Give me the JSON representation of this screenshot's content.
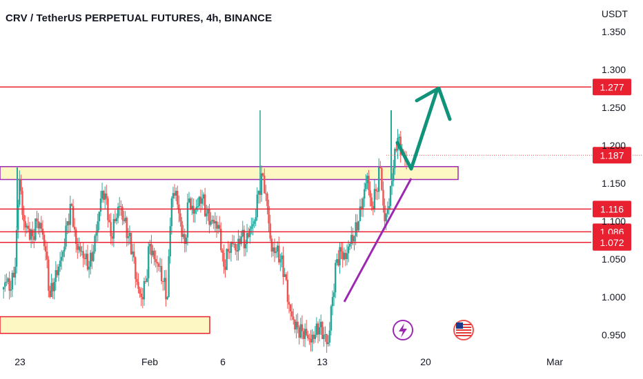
{
  "title": "CRV / TetherUS PERPETUAL FUTURES, 4h, BINANCE",
  "currency": "USDT",
  "colors": {
    "up": "#26a69a",
    "down": "#ef5350",
    "level": "#e8202f",
    "zone_fill": "#fdf7c3",
    "zone_border": "#e8202f",
    "purple_zone_border": "#9c27b0",
    "trendline": "#9c27b0",
    "arrow": "#10937a",
    "price_line": "#ef5350"
  },
  "chart_data": {
    "type": "candlestick",
    "timeframe": "4h",
    "y_ticks": [
      "1.350",
      "1.300",
      "1.250",
      "1.200",
      "1.150",
      "1.100",
      "1.050",
      "1.000",
      "0.950"
    ],
    "x_ticks": [
      "23",
      "Feb",
      "6",
      "13",
      "20",
      "Mar"
    ],
    "ylim": [
      0.94,
      1.35
    ],
    "horizontal_levels": [
      {
        "price": 1.277,
        "label": "1.277"
      },
      {
        "price": 1.116,
        "label": "1.116"
      },
      {
        "price": 1.086,
        "label": "1.086"
      },
      {
        "price": 1.072,
        "label": "1.072"
      }
    ],
    "current_price": {
      "price": 1.187,
      "label": "1.187"
    },
    "zones": [
      {
        "name": "resistance-zone",
        "from": 1.155,
        "to": 1.172,
        "border": "purple"
      },
      {
        "name": "support-zone",
        "from": 0.952,
        "to": 0.974,
        "border": "red"
      }
    ],
    "trendline": {
      "from": {
        "date": "Feb 14",
        "price": 0.99
      },
      "to": {
        "date": "Feb 18",
        "price": 1.155
      }
    },
    "projection": {
      "points": [
        {
          "date": "Feb 18",
          "price": 1.187
        },
        {
          "date": "Feb 18",
          "price": 1.165
        },
        {
          "date": "Feb 21",
          "price": 1.277
        }
      ]
    },
    "ohlc_close_path": [
      1.02,
      1.01,
      1.04,
      1.155,
      1.1,
      1.09,
      1.08,
      1.1,
      1.09,
      1.06,
      1.0,
      1.02,
      1.04,
      1.06,
      1.1,
      1.12,
      1.07,
      1.06,
      1.05,
      1.04,
      1.06,
      1.1,
      1.14,
      1.13,
      1.08,
      1.1,
      1.12,
      1.1,
      1.08,
      1.06,
      1.02,
      1.0,
      1.02,
      1.07,
      1.05,
      1.04,
      1.02,
      1.0,
      1.13,
      1.14,
      1.1,
      1.07,
      1.13,
      1.11,
      1.12,
      1.13,
      1.11,
      1.1,
      1.1,
      1.09,
      1.04,
      1.06,
      1.07,
      1.06,
      1.08,
      1.07,
      1.09,
      1.1,
      1.14,
      1.16,
      1.12,
      1.06,
      1.06,
      1.05,
      1.03,
      0.99,
      0.97,
      0.96,
      0.955,
      0.95,
      0.94,
      0.95,
      0.96,
      0.95,
      0.94,
      1.0,
      1.05,
      1.06,
      1.05,
      1.07,
      1.08,
      1.1,
      1.13,
      1.16,
      1.12,
      1.14,
      1.17,
      1.1,
      1.12,
      1.17,
      1.21,
      1.19,
      1.18
    ],
    "events": [
      {
        "name": "lightning-event-icon",
        "date": "Feb 17"
      },
      {
        "name": "us-flag-event-icon",
        "date": "Feb 22"
      }
    ]
  }
}
